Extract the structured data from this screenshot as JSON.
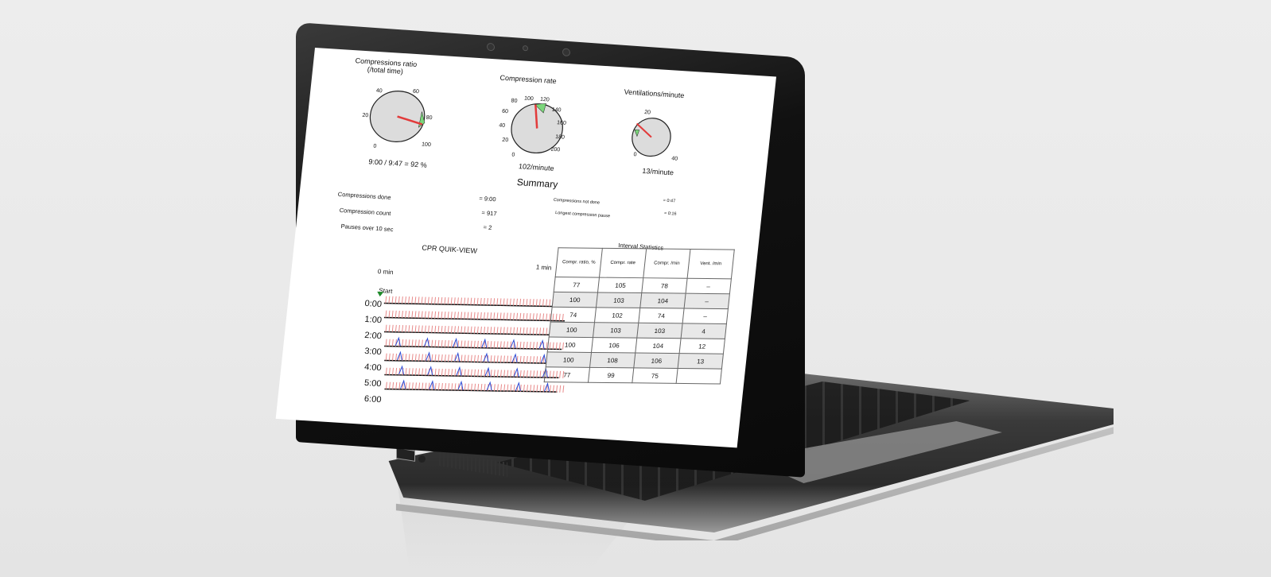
{
  "gauges": [
    {
      "title_line1": "Compressions ratio",
      "title_line2": "(/total time)",
      "ticks": [
        "0",
        "20",
        "40",
        "60",
        "80",
        "100"
      ],
      "value_text": "9:00 / 9:47 = 92 %"
    },
    {
      "title_line1": "Compression rate",
      "title_line2": "",
      "ticks": [
        "0",
        "20",
        "40",
        "60",
        "80",
        "100",
        "120",
        "140",
        "160",
        "180",
        "200"
      ],
      "value_text": "102/minute"
    },
    {
      "title_line1": "Ventilations/minute",
      "title_line2": "",
      "ticks": [
        "0",
        "20",
        "40"
      ],
      "value_text": "13/minute"
    }
  ],
  "summary": {
    "title": "Summary",
    "left": [
      {
        "label": "Compressions done",
        "value": "= 9:00"
      },
      {
        "label": "Compression count",
        "value": "= 917"
      },
      {
        "label": "Pauses over 10 sec",
        "value": "= 2"
      }
    ],
    "right": [
      {
        "label": "Compressions not done",
        "value": "= 0:47"
      },
      {
        "label": "Longest compression pause",
        "value": "= 0:16"
      }
    ]
  },
  "quikview": {
    "title": "CPR QUIK-VIEW",
    "start_label": "0 min",
    "end_label": "1 min",
    "marker": "Start",
    "rows": [
      "0:00",
      "1:00",
      "2:00",
      "3:00",
      "4:00",
      "5:00",
      "6:00"
    ]
  },
  "interval": {
    "title": "Interval Statistics",
    "headers": [
      "Compr. ratio, %",
      "Compr. rate",
      "Compr. /min",
      "Vent. /min"
    ],
    "rows": [
      [
        "77",
        "105",
        "78",
        "–"
      ],
      [
        "100",
        "103",
        "104",
        "–"
      ],
      [
        "74",
        "102",
        "74",
        "–"
      ],
      [
        "100",
        "103",
        "103",
        "4"
      ],
      [
        "100",
        "106",
        "104",
        "12"
      ],
      [
        "100",
        "108",
        "106",
        "13"
      ],
      [
        "77",
        "99",
        "75",
        ""
      ]
    ]
  },
  "colors": {
    "needle": "#e23b3b",
    "target": "#7bd67b",
    "ventilation": "#2b4bd6",
    "compression": "#e88a8a"
  }
}
